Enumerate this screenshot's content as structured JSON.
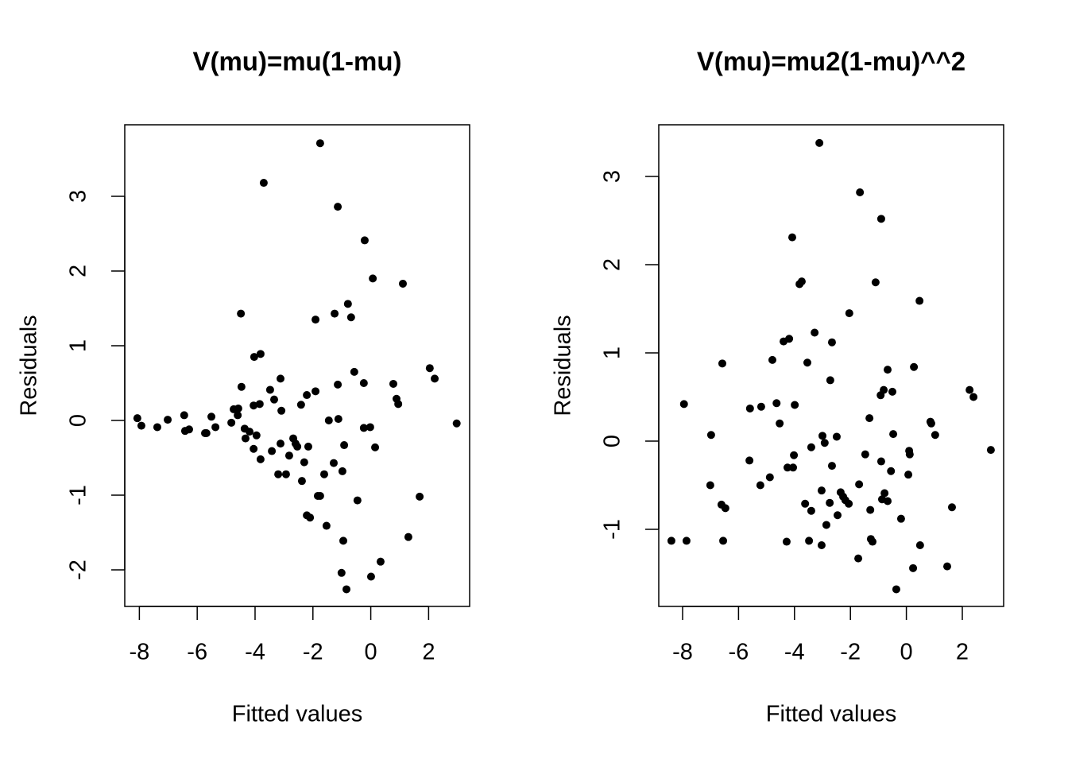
{
  "chart_data": [
    {
      "type": "scatter",
      "title": "V(mu)=mu(1-mu)",
      "xlabel": "Fitted values",
      "ylabel": "Residuals",
      "color": "#000000",
      "xlim": [
        -8.505,
        3.418
      ],
      "ylim": [
        -2.489,
        3.957
      ],
      "xticks": [
        -8,
        -6,
        -4,
        -2,
        0,
        2
      ],
      "yticks": [
        -2,
        -1,
        0,
        1,
        2,
        3
      ],
      "x": [
        -8.07,
        -7.93,
        -7.38,
        -7.02,
        -6.45,
        -6.42,
        -6.28,
        -5.73,
        -5.68,
        -5.51,
        -5.37,
        -4.82,
        -4.74,
        -4.6,
        -4.58,
        -4.49,
        -4.47,
        -4.36,
        -4.33,
        -4.19,
        -4.05,
        -4.05,
        -4.03,
        -3.95,
        -3.84,
        -3.81,
        -3.81,
        -3.7,
        -3.48,
        -3.42,
        -3.34,
        -3.2,
        -3.12,
        -3.12,
        -3.09,
        -2.93,
        -2.82,
        -2.68,
        -2.6,
        -2.54,
        -2.41,
        -2.38,
        -2.3,
        -2.21,
        -2.21,
        -2.16,
        -2.1,
        -1.91,
        -1.91,
        -1.83,
        -1.75,
        -1.75,
        -1.53,
        -1.61,
        -1.45,
        -1.28,
        -1.25,
        -1.14,
        -1.14,
        -1.12,
        -0.98,
        -0.95,
        -1.01,
        -0.92,
        -0.84,
        -0.79,
        -0.68,
        -0.57,
        -0.46,
        -0.24,
        -0.24,
        -0.21,
        -0.02,
        0.01,
        0.07,
        0.15,
        0.34,
        0.78,
        0.89,
        0.95,
        1.69,
        1.3,
        1.11,
        2.04,
        2.21,
        2.97
      ],
      "values": [
        0.03,
        -0.07,
        -0.09,
        0.01,
        0.07,
        -0.14,
        -0.12,
        -0.17,
        -0.17,
        0.05,
        -0.09,
        -0.03,
        0.15,
        0.07,
        0.16,
        1.43,
        0.45,
        -0.11,
        -0.24,
        -0.15,
        0.2,
        -0.38,
        0.85,
        -0.2,
        0.22,
        0.89,
        -0.52,
        3.18,
        0.41,
        -0.41,
        0.28,
        -0.72,
        -0.31,
        0.56,
        0.13,
        -0.72,
        -0.47,
        -0.24,
        -0.31,
        -0.35,
        0.21,
        -0.81,
        -0.56,
        -1.27,
        0.34,
        -0.35,
        -1.3,
        1.35,
        0.39,
        -1.01,
        3.71,
        -1.01,
        -1.41,
        -0.72,
        0.0,
        -0.57,
        1.43,
        2.86,
        0.48,
        0.02,
        -0.68,
        -1.61,
        -2.04,
        -0.33,
        -2.26,
        1.56,
        1.38,
        0.65,
        -1.07,
        0.5,
        -0.1,
        2.41,
        -0.09,
        -2.09,
        1.9,
        -0.36,
        -1.89,
        0.49,
        0.29,
        0.22,
        -1.02,
        -1.56,
        1.83,
        0.7,
        0.56,
        -0.04
      ]
    },
    {
      "type": "scatter",
      "title": "V(mu)=mu2(1-mu)^^2",
      "xlabel": "Fitted values",
      "ylabel": "Residuals",
      "color": "#000000",
      "xlim": [
        -8.852,
        3.477
      ],
      "ylim": [
        -1.874,
        3.586
      ],
      "xticks": [
        -8,
        -6,
        -4,
        -2,
        0,
        2
      ],
      "yticks": [
        -1,
        0,
        1,
        2,
        3
      ],
      "x": [
        -8.4,
        -7.95,
        -7.86,
        -7.01,
        -6.98,
        -6.61,
        -6.58,
        -6.55,
        -6.47,
        -5.61,
        -5.59,
        -5.22,
        -5.19,
        -4.88,
        -4.79,
        -4.64,
        -4.53,
        -4.39,
        -4.28,
        -4.25,
        -4.19,
        -4.08,
        -4.05,
        -4.02,
        -3.99,
        -3.82,
        -3.74,
        -3.62,
        -3.54,
        -3.48,
        -3.4,
        -3.4,
        -3.28,
        -3.11,
        -3.03,
        -3.03,
        -3.0,
        -2.92,
        -2.86,
        -2.74,
        -2.72,
        -2.66,
        -2.66,
        -2.49,
        -2.46,
        -2.35,
        -2.26,
        -2.18,
        -2.06,
        -2.04,
        -1.72,
        -1.69,
        -1.66,
        -1.47,
        -1.32,
        -1.29,
        -1.27,
        -1.21,
        -1.1,
        -0.9,
        -0.9,
        -0.92,
        -0.81,
        -0.78,
        -0.87,
        -0.67,
        -0.67,
        -0.55,
        -0.5,
        -0.47,
        -0.36,
        -0.19,
        0.07,
        0.1,
        0.12,
        0.24,
        0.27,
        0.49,
        0.47,
        0.86,
        0.89,
        1.03,
        1.46,
        1.63,
        2.26,
        2.4,
        3.02
      ],
      "values": [
        -1.13,
        0.42,
        -1.13,
        -0.5,
        0.07,
        -0.72,
        0.88,
        -1.13,
        -0.76,
        -0.22,
        0.37,
        -0.5,
        0.39,
        -0.41,
        0.92,
        0.43,
        0.2,
        1.13,
        -1.14,
        -0.3,
        1.16,
        2.31,
        -0.3,
        -0.16,
        0.41,
        1.78,
        1.81,
        -0.71,
        0.89,
        -1.13,
        -0.79,
        -0.07,
        1.23,
        3.38,
        -0.56,
        -1.18,
        0.06,
        -0.02,
        -0.95,
        -0.7,
        0.69,
        1.12,
        -0.28,
        0.05,
        -0.84,
        -0.58,
        -0.63,
        -0.67,
        -0.71,
        1.45,
        -1.33,
        -0.49,
        2.82,
        -0.15,
        0.26,
        -0.78,
        -1.11,
        -1.14,
        1.8,
        2.52,
        -0.23,
        0.52,
        0.58,
        -0.59,
        -0.66,
        0.81,
        -0.68,
        -0.34,
        0.56,
        0.08,
        -1.68,
        -0.88,
        -0.38,
        -0.11,
        -0.15,
        -1.44,
        0.84,
        -1.18,
        1.59,
        0.22,
        0.2,
        0.07,
        -1.42,
        -0.75,
        0.58,
        0.5,
        -0.1
      ]
    }
  ]
}
